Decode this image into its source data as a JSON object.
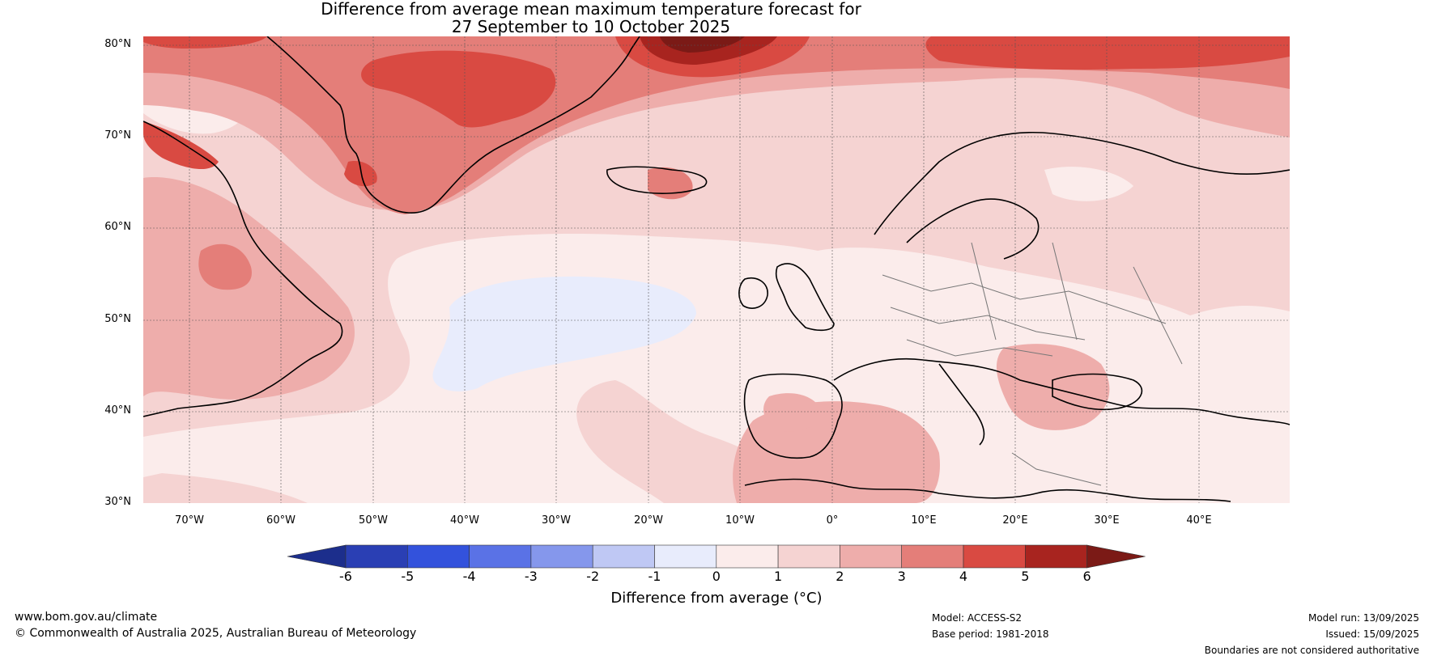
{
  "title": {
    "line1": "Difference from average mean maximum temperature forecast for",
    "line2": "27 September to 10 October 2025"
  },
  "map": {
    "lat_labels": [
      "80°N",
      "70°N",
      "60°N",
      "50°N",
      "40°N",
      "30°N"
    ],
    "lon_labels": [
      "70°W",
      "60°W",
      "50°W",
      "40°W",
      "30°W",
      "20°W",
      "10°W",
      "0°",
      "10°E",
      "20°E",
      "30°E",
      "40°E"
    ],
    "lat_range": [
      30,
      81
    ],
    "lon_range": [
      -75,
      50
    ]
  },
  "colorbar": {
    "ticks": [
      "-6",
      "-5",
      "-4",
      "-3",
      "-2",
      "-1",
      "0",
      "1",
      "2",
      "3",
      "4",
      "5",
      "6"
    ],
    "colors": [
      "#1c2e8c",
      "#2a3fb4",
      "#3352dc",
      "#5a72e6",
      "#8597ec",
      "#bfc8f4",
      "#e8ecfc",
      "#fbeceb",
      "#f5d3d2",
      "#eeadab",
      "#e47e79",
      "#d94a42",
      "#a8241f",
      "#7b1a16"
    ],
    "title": "Difference from average (°C)"
  },
  "footer": {
    "website": "www.bom.gov.au/climate",
    "copyright": "© Commonwealth of Australia 2025, Australian Bureau of Meteorology",
    "model": "Model: ACCESS-S2",
    "base_period": "Base period: 1981-2018",
    "model_run": "Model run: 13/09/2025",
    "issued": "Issued: 15/09/2025",
    "disclaimer": "Boundaries are not considered authoritative"
  }
}
